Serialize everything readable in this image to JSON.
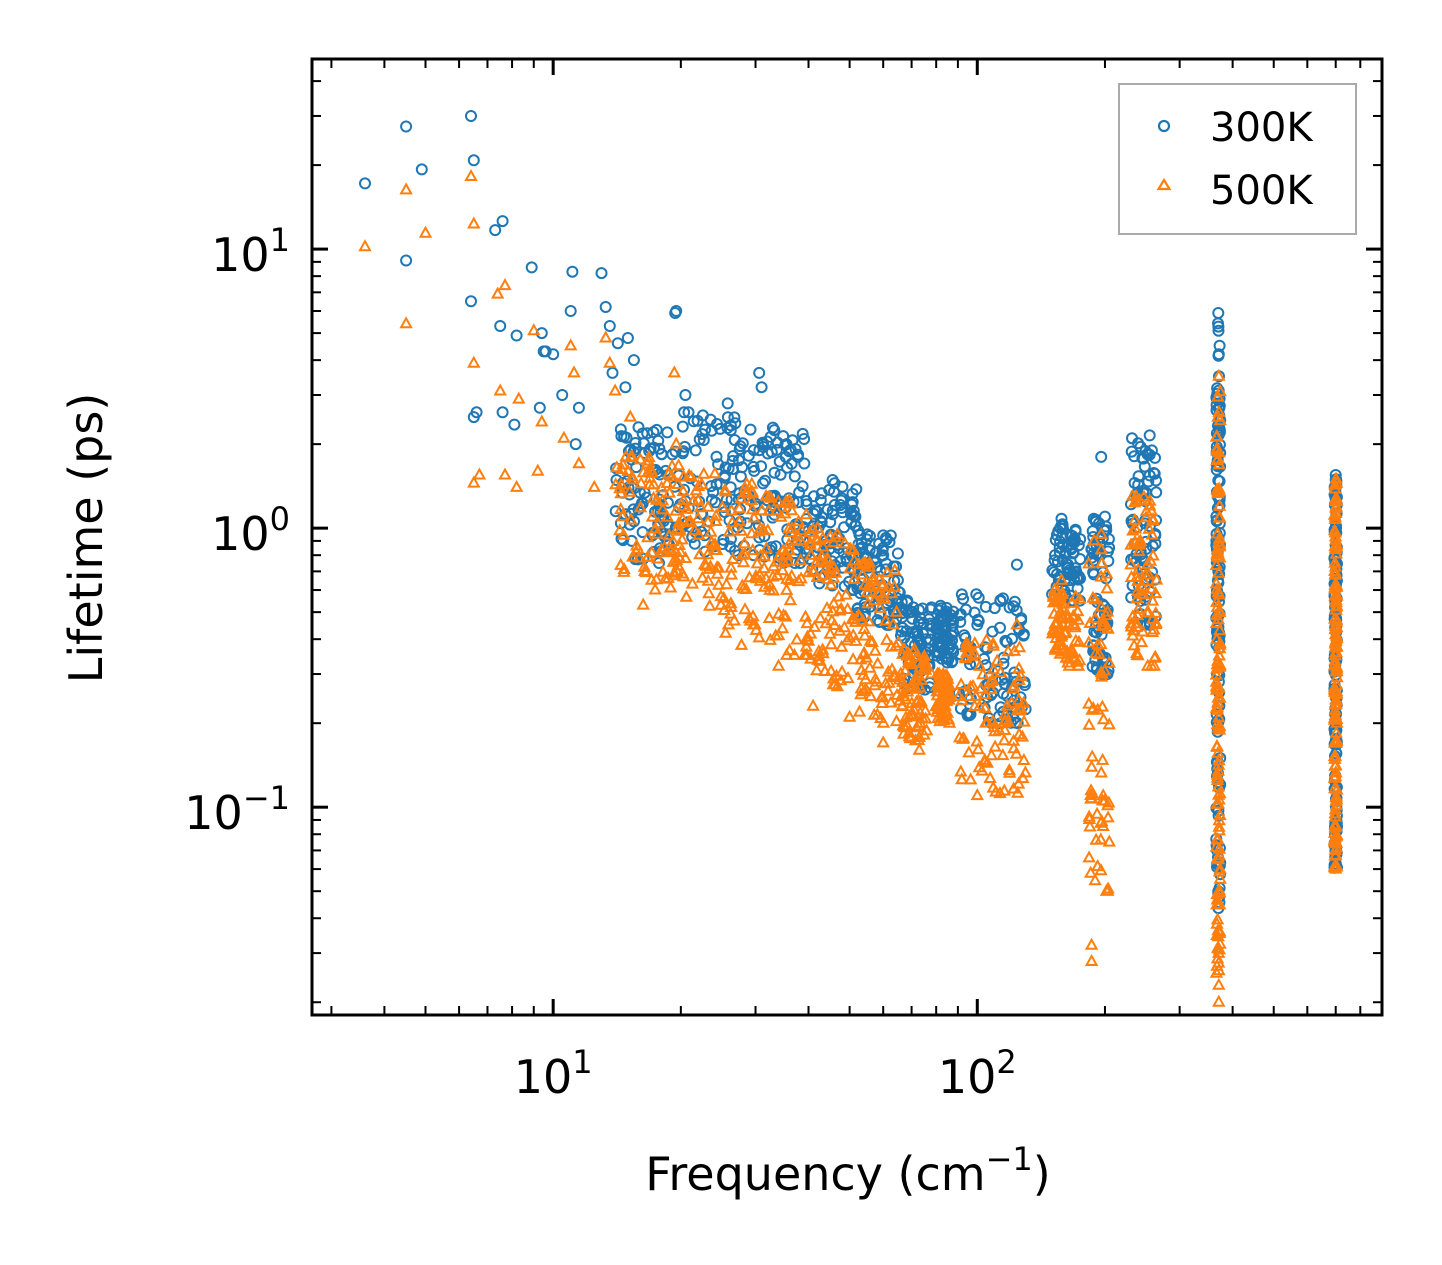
{
  "chart_data": {
    "type": "scatter",
    "title": "",
    "xlabel": "Frequency (cm",
    "xlabel_sup": "−1",
    "xlabel_end": ")",
    "ylabel": "Lifetime (ps)",
    "xscale": "log",
    "yscale": "log",
    "xlim": [
      2.7,
      900
    ],
    "ylim": [
      0.018,
      48
    ],
    "x_ticks": [
      {
        "value": 10,
        "base": "10",
        "exp": "1"
      },
      {
        "value": 100,
        "base": "10",
        "exp": "2"
      }
    ],
    "y_ticks": [
      {
        "value": 0.1,
        "base": "10",
        "exp": "−1"
      },
      {
        "value": 1,
        "base": "10",
        "exp": "0"
      },
      {
        "value": 10,
        "base": "10",
        "exp": "1"
      }
    ],
    "legend_position": "top-right",
    "series": [
      {
        "name": "300K",
        "marker": "circle",
        "color": "#1f77b4",
        "points": [
          [
            3.6,
            17.2
          ],
          [
            4.5,
            27.5
          ],
          [
            4.5,
            9.1
          ],
          [
            4.9,
            19.3
          ],
          [
            6.4,
            30.0
          ],
          [
            6.5,
            20.8
          ],
          [
            6.4,
            6.5
          ],
          [
            6.5,
            2.5
          ],
          [
            6.6,
            2.6
          ],
          [
            7.3,
            11.7
          ],
          [
            7.6,
            12.6
          ],
          [
            7.5,
            5.3
          ],
          [
            7.6,
            2.6
          ],
          [
            8.1,
            2.35
          ],
          [
            8.2,
            4.9
          ],
          [
            8.9,
            8.6
          ],
          [
            9.4,
            5.0
          ],
          [
            9.5,
            4.3
          ],
          [
            9.3,
            2.7
          ],
          [
            9.6,
            4.3
          ],
          [
            10.0,
            4.2
          ],
          [
            10.5,
            3.0
          ],
          [
            11.1,
            8.3
          ],
          [
            11.0,
            6.0
          ],
          [
            11.5,
            2.7
          ],
          [
            11.3,
            2.0
          ],
          [
            13.0,
            8.2
          ],
          [
            13.3,
            6.2
          ],
          [
            13.6,
            5.3
          ],
          [
            14.2,
            4.6
          ],
          [
            15.0,
            4.8
          ],
          [
            15.5,
            4.0
          ],
          [
            13.8,
            3.6
          ],
          [
            14.8,
            3.2
          ],
          [
            19.5,
            6.0
          ],
          [
            19.4,
            5.9
          ],
          [
            20.5,
            3.0
          ],
          [
            25.8,
            2.8
          ],
          [
            30.6,
            3.6
          ],
          [
            31.0,
            3.2
          ],
          [
            36.5,
            1.7
          ],
          [
            45.0,
            1.05
          ],
          [
            55.0,
            0.95
          ],
          [
            60.0,
            0.8
          ],
          [
            65.0,
            0.65
          ],
          [
            78.0,
            0.52
          ],
          [
            100.0,
            0.45
          ],
          [
            115.0,
            0.56
          ],
          [
            124.0,
            0.74
          ],
          [
            158.0,
            1.08
          ],
          [
            196.0,
            1.8
          ],
          [
            200.0,
            1.1
          ],
          [
            255.0,
            2.15
          ],
          [
            258.0,
            1.9
          ],
          [
            370.0,
            5.9
          ],
          [
            370.5,
            5.1
          ],
          [
            371.0,
            4.2
          ],
          [
            371.5,
            3.5
          ],
          [
            370.0,
            0.05
          ],
          [
            700.0,
            1.55
          ],
          [
            701.0,
            1.0
          ],
          [
            700.5,
            0.62
          ]
        ],
        "bands": [
          {
            "x": [
              14,
              20
            ],
            "y": [
              0.75,
              2.3
            ]
          },
          {
            "x": [
              20,
              30
            ],
            "y": [
              0.8,
              2.6
            ]
          },
          {
            "x": [
              30,
              40
            ],
            "y": [
              0.75,
              2.3
            ]
          },
          {
            "x": [
              40,
              52
            ],
            "y": [
              0.6,
              1.5
            ]
          },
          {
            "x": [
              52,
              66
            ],
            "y": [
              0.45,
              1.0
            ]
          },
          {
            "x": [
              66,
              78
            ],
            "y": [
              0.26,
              0.55
            ]
          },
          {
            "x": [
              80,
              88
            ],
            "y": [
              0.33,
              0.53
            ]
          },
          {
            "x": [
              90,
              130
            ],
            "y": [
              0.2,
              0.58
            ]
          },
          {
            "x": [
              150,
              175
            ],
            "y": [
              0.55,
              1.08
            ]
          },
          {
            "x": [
              185,
              205
            ],
            "y": [
              0.3,
              1.08
            ]
          },
          {
            "x": [
              230,
              265
            ],
            "y": [
              0.45,
              2.1
            ]
          },
          {
            "x": [
              366,
              374
            ],
            "y": [
              0.04,
              5.5
            ]
          },
          {
            "x": [
              695,
              705
            ],
            "y": [
              0.06,
              1.5
            ]
          }
        ]
      },
      {
        "name": "500K",
        "marker": "triangle",
        "color": "#ff7f0e",
        "points": [
          [
            3.6,
            10.2
          ],
          [
            4.5,
            16.3
          ],
          [
            4.5,
            5.4
          ],
          [
            5.0,
            11.4
          ],
          [
            6.4,
            18.2
          ],
          [
            6.5,
            12.3
          ],
          [
            6.5,
            3.9
          ],
          [
            6.5,
            1.45
          ],
          [
            6.7,
            1.55
          ],
          [
            7.4,
            6.9
          ],
          [
            7.7,
            7.4
          ],
          [
            7.5,
            3.1
          ],
          [
            7.7,
            1.55
          ],
          [
            8.2,
            1.4
          ],
          [
            8.3,
            2.9
          ],
          [
            9.0,
            5.1
          ],
          [
            9.4,
            2.4
          ],
          [
            9.2,
            1.6
          ],
          [
            10.6,
            2.1
          ],
          [
            11.0,
            4.5
          ],
          [
            11.2,
            3.6
          ],
          [
            11.5,
            1.7
          ],
          [
            12.5,
            1.4
          ],
          [
            13.3,
            4.8
          ],
          [
            13.6,
            3.9
          ],
          [
            14.0,
            3.1
          ],
          [
            15.2,
            2.5
          ],
          [
            19.3,
            3.6
          ],
          [
            19.5,
            2.0
          ],
          [
            16.3,
            0.53
          ],
          [
            21.3,
            0.63
          ],
          [
            25.5,
            0.42
          ],
          [
            27.8,
            0.38
          ],
          [
            34.0,
            0.32
          ],
          [
            41.0,
            0.23
          ],
          [
            50.0,
            0.21
          ],
          [
            60.0,
            0.17
          ],
          [
            73.0,
            0.16
          ],
          [
            78.0,
            0.3
          ],
          [
            100.0,
            0.11
          ],
          [
            116.0,
            0.2
          ],
          [
            124.0,
            0.45
          ],
          [
            158.0,
            0.65
          ],
          [
            186.0,
            0.032
          ],
          [
            186.0,
            0.028
          ],
          [
            196.0,
            0.95
          ],
          [
            255.0,
            1.2
          ],
          [
            371.0,
            3.5
          ],
          [
            371.5,
            2.6
          ],
          [
            371.0,
            0.02
          ],
          [
            371.0,
            0.023
          ],
          [
            701.0,
            1.5
          ],
          [
            700.0,
            0.06
          ]
        ],
        "bands": [
          {
            "x": [
              14,
              20
            ],
            "y": [
              0.6,
              1.8
            ]
          },
          {
            "x": [
              20,
              30
            ],
            "y": [
              0.45,
              1.6
            ]
          },
          {
            "x": [
              30,
              40
            ],
            "y": [
              0.35,
              1.3
            ]
          },
          {
            "x": [
              40,
              52
            ],
            "y": [
              0.27,
              1.0
            ]
          },
          {
            "x": [
              52,
              66
            ],
            "y": [
              0.2,
              0.75
            ]
          },
          {
            "x": [
              66,
              76
            ],
            "y": [
              0.17,
              0.37
            ]
          },
          {
            "x": [
              80,
              86
            ],
            "y": [
              0.2,
              0.3
            ]
          },
          {
            "x": [
              90,
              130
            ],
            "y": [
              0.11,
              0.4
            ]
          },
          {
            "x": [
              150,
              175
            ],
            "y": [
              0.32,
              0.6
            ]
          },
          {
            "x": [
              183,
              205
            ],
            "y": [
              0.05,
              0.9
            ]
          },
          {
            "x": [
              230,
              265
            ],
            "y": [
              0.32,
              1.3
            ]
          },
          {
            "x": [
              366,
              374
            ],
            "y": [
              0.025,
              3.3
            ]
          },
          {
            "x": [
              695,
              705
            ],
            "y": [
              0.06,
              1.5
            ]
          }
        ]
      }
    ]
  }
}
